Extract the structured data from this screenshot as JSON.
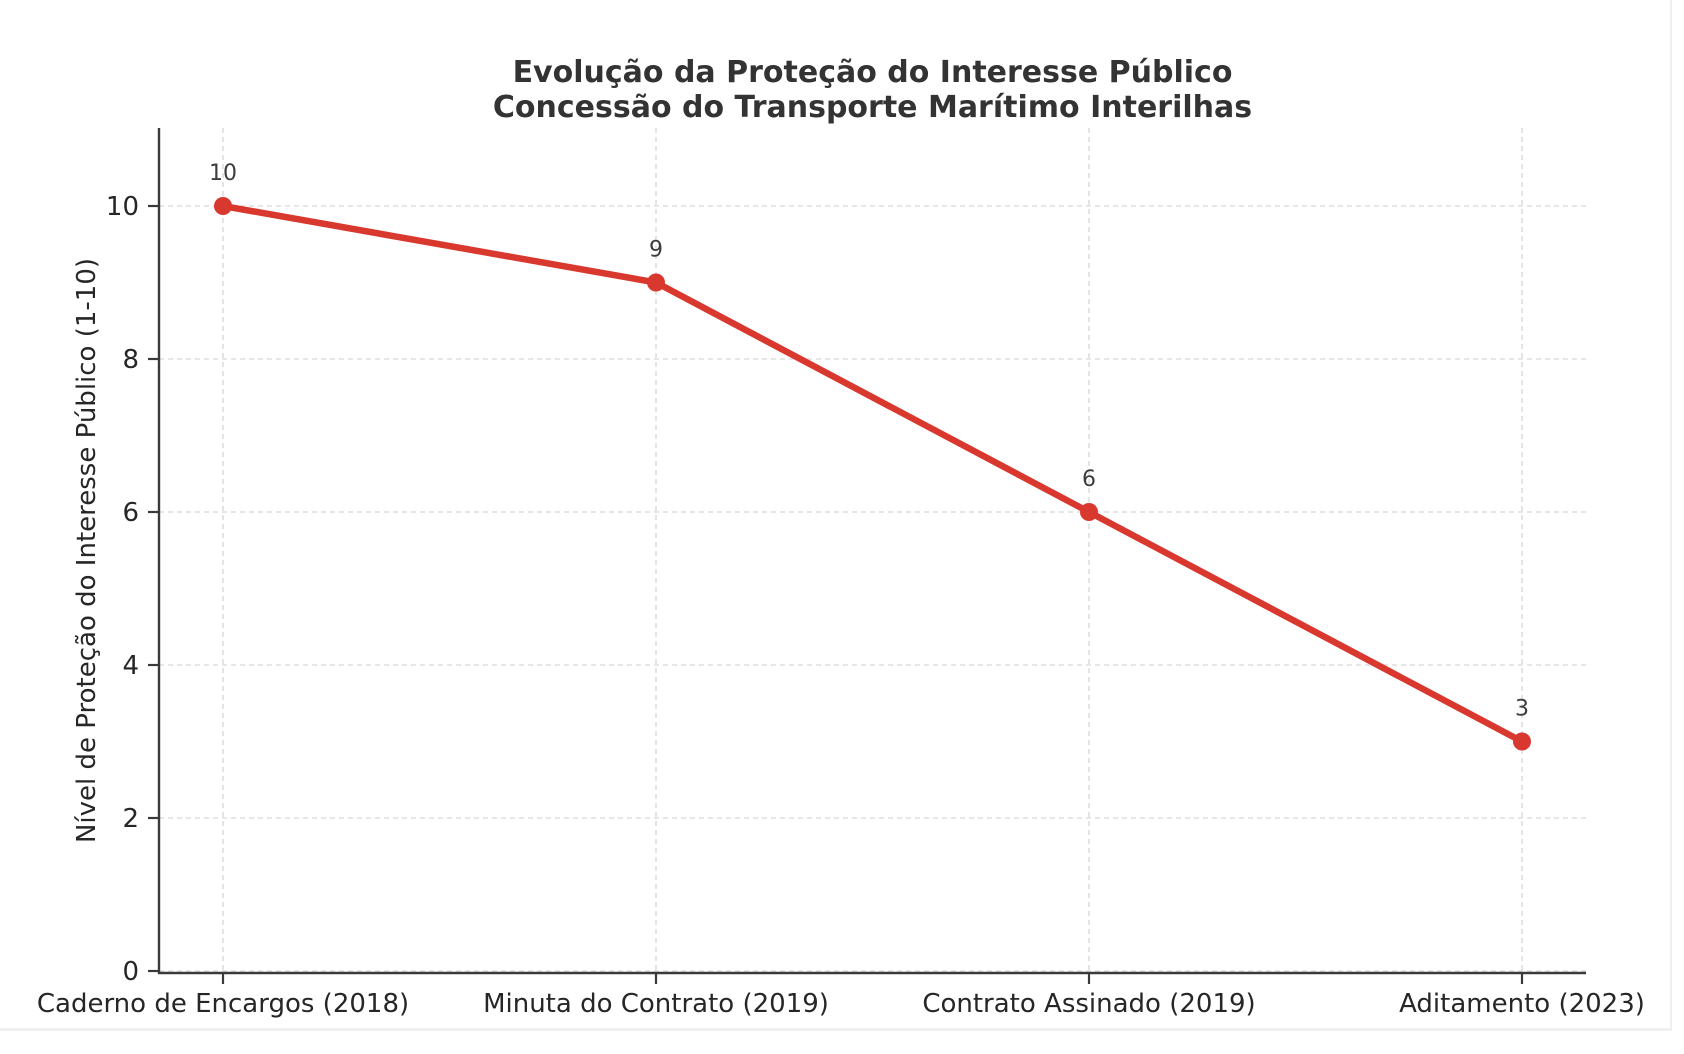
{
  "page": {
    "background_color": "#ffffff",
    "edge_border_color": "#f0f0f0"
  },
  "chart_data": {
    "type": "line",
    "title": "Evolução da Proteção do Interesse Público",
    "subtitle": "Concessão do Transporte Marítimo Interilhas",
    "categories": [
      "Caderno de Encargos (2018)",
      "Minuta do Contrato (2019)",
      "Contrato Assinado (2019)",
      "Aditamento (2023)"
    ],
    "values": [
      10,
      9,
      6,
      3
    ],
    "point_labels": [
      "10",
      "9",
      "6",
      "3"
    ],
    "xlabel": "",
    "ylabel": "Nível de Proteção do Interesse Público (1-10)",
    "ylim": [
      0,
      11
    ],
    "yticks": [
      0,
      2,
      4,
      6,
      8,
      10
    ],
    "ytick_labels": [
      "0",
      "2",
      "4",
      "6",
      "8",
      "10"
    ],
    "grid": "on",
    "grid_style": "dashed",
    "grid_color": "#dedede",
    "legend_position": "none",
    "line_color": "#d9382e",
    "marker_shape": "circle",
    "spine_color": "#3a3a3a",
    "text_color": "#262626",
    "title_color": "#333333",
    "annotation_color": "#3c3c3c"
  }
}
